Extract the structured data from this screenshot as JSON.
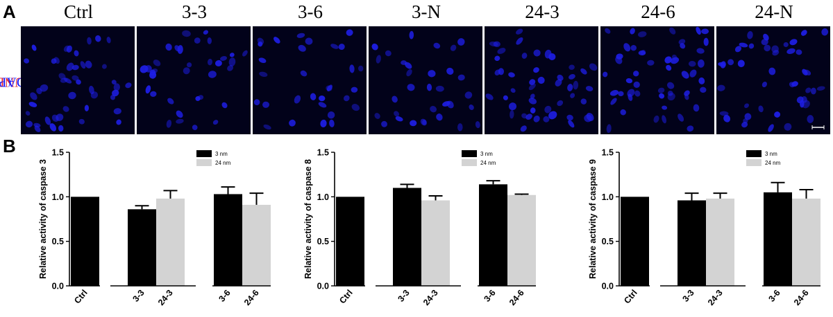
{
  "panel_a": {
    "letter": "A",
    "stain_label_red": "TUNEL",
    "stain_label_sep": "/",
    "stain_label_blue": "DAPI",
    "stain_colors": {
      "red": "#e8262b",
      "blue": "#1a1aff",
      "nuclei": "#1e1ee6"
    },
    "columns": [
      "Ctrl",
      "3-3",
      "3-6",
      "3-N",
      "24-3",
      "24-6",
      "24-N"
    ]
  },
  "panel_b": {
    "letter": "B"
  },
  "chart_data": [
    {
      "type": "bar",
      "ylabel": "Relative activity of caspase 3",
      "ylim": [
        0,
        1.5
      ],
      "yticks": [
        "0.0",
        "0.5",
        "1.0",
        "1.5"
      ],
      "categories": [
        "Ctrl",
        "3-3",
        "24-3",
        "3-6",
        "24-6"
      ],
      "values": [
        1.0,
        0.86,
        0.98,
        1.03,
        0.91
      ],
      "errors": [
        0,
        0.04,
        0.09,
        0.08,
        0.13
      ],
      "series_color": [
        "#000000",
        "#000000",
        "#d3d3d3",
        "#000000",
        "#d3d3d3"
      ],
      "legend": [
        {
          "name": "3 nm",
          "color": "#000000"
        },
        {
          "name": "24 nm",
          "color": "#d3d3d3"
        }
      ],
      "legend_position": "top-right"
    },
    {
      "type": "bar",
      "ylabel": "Relative activity of caspase 8",
      "ylim": [
        0,
        1.5
      ],
      "yticks": [
        "0.0",
        "0.5",
        "1.0",
        "1.5"
      ],
      "categories": [
        "Ctrl",
        "3-3",
        "24-3",
        "3-6",
        "24-6"
      ],
      "values": [
        1.0,
        1.1,
        0.96,
        1.14,
        1.02
      ],
      "errors": [
        0,
        0.04,
        0.05,
        0.04,
        0.01
      ],
      "series_color": [
        "#000000",
        "#000000",
        "#d3d3d3",
        "#000000",
        "#d3d3d3"
      ],
      "legend": [
        {
          "name": "3 nm",
          "color": "#000000"
        },
        {
          "name": "24 nm",
          "color": "#d3d3d3"
        }
      ],
      "legend_position": "top-right"
    },
    {
      "type": "bar",
      "ylabel": "Relative activity of caspase 9",
      "ylim": [
        0,
        1.5
      ],
      "yticks": [
        "0.0",
        "0.5",
        "1.0",
        "1.5"
      ],
      "categories": [
        "Ctrl",
        "3-3",
        "24-3",
        "3-6",
        "24-6"
      ],
      "values": [
        1.0,
        0.96,
        0.98,
        1.05,
        0.98
      ],
      "errors": [
        0,
        0.08,
        0.06,
        0.11,
        0.1
      ],
      "series_color": [
        "#000000",
        "#000000",
        "#d3d3d3",
        "#000000",
        "#d3d3d3"
      ],
      "legend": [
        {
          "name": "3 nm",
          "color": "#000000"
        },
        {
          "name": "24 nm",
          "color": "#d3d3d3"
        }
      ],
      "legend_position": "top-right"
    }
  ]
}
